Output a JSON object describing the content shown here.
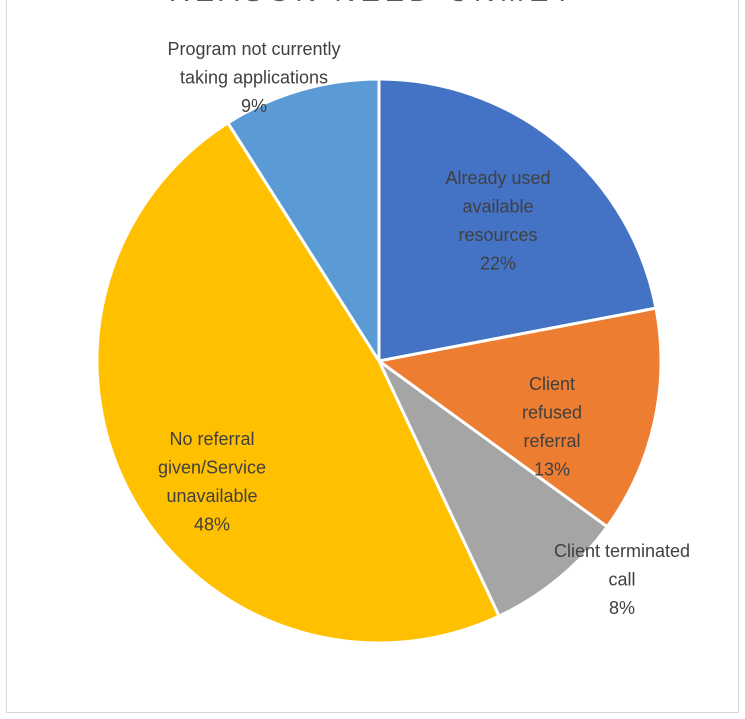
{
  "chart_data": {
    "type": "pie",
    "title": "REASON NEED UNMET",
    "slices": [
      {
        "lines": [
          "Already used",
          "available",
          "resources"
        ],
        "percent_label": "22%",
        "value": 22,
        "color": "#4472C4",
        "label_color": "#404040"
      },
      {
        "lines": [
          "Client",
          "refused",
          "referral"
        ],
        "percent_label": "13%",
        "value": 13,
        "color": "#ED7D31",
        "label_color": "#404040"
      },
      {
        "lines": [
          "Client terminated",
          "call"
        ],
        "percent_label": "8%",
        "value": 8,
        "color": "#A5A5A5",
        "label_color": "#404040"
      },
      {
        "lines": [
          "No referral",
          "given/Service",
          "unavailable"
        ],
        "percent_label": "48%",
        "value": 48,
        "color": "#FFC000",
        "label_color": "#404040"
      },
      {
        "lines": [
          "Program not currently",
          "taking applications"
        ],
        "percent_label": "9%",
        "value": 9,
        "color": "#5B9BD5",
        "label_color": "#404040"
      }
    ],
    "start_angle_deg": 0,
    "direction": "clockwise",
    "legend": "none"
  }
}
